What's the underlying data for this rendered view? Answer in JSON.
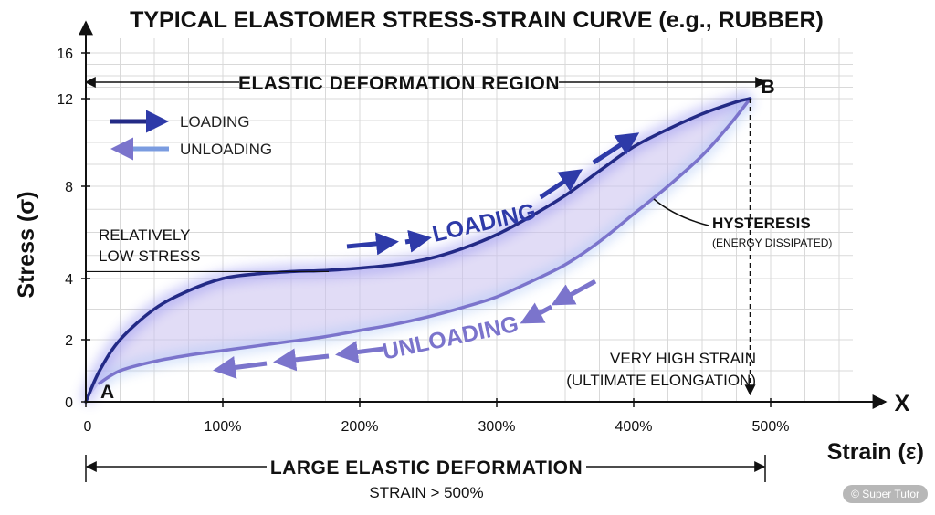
{
  "chart_data": {
    "type": "line",
    "title": "TYPICAL ELASTOMER STRESS-STRAIN CURVE (e.g., RUBBER)",
    "xlabel": "Strain (ε)",
    "ylabel": "Stress (σ)",
    "x_axis_end_label": "X",
    "xlim": [
      0,
      560
    ],
    "ylim": [
      0,
      16
    ],
    "x_ticks": [
      {
        "value": 0,
        "label": "0"
      },
      {
        "value": 100,
        "label": "100%"
      },
      {
        "value": 200,
        "label": "200%"
      },
      {
        "value": 300,
        "label": "300%"
      },
      {
        "value": 400,
        "label": "400%"
      },
      {
        "value": 500,
        "label": "500%"
      }
    ],
    "y_ticks": [
      {
        "value": 0,
        "label": "0"
      },
      {
        "value": 2,
        "label": "2"
      },
      {
        "value": 4,
        "label": "4"
      },
      {
        "value": 8,
        "label": "8"
      },
      {
        "value": 12,
        "label": "12"
      },
      {
        "value": 16,
        "label": "16"
      }
    ],
    "grid": true,
    "legend_position": "top-left",
    "series": [
      {
        "name": "LOADING",
        "color": "#232a86",
        "x": [
          0,
          10,
          25,
          50,
          75,
          100,
          125,
          150,
          175,
          200,
          225,
          250,
          275,
          300,
          325,
          350,
          375,
          400,
          425,
          450,
          475,
          485
        ],
        "y": [
          0,
          1.0,
          2.0,
          3.0,
          3.6,
          4.0,
          4.2,
          4.3,
          4.35,
          4.45,
          4.6,
          4.85,
          5.3,
          5.9,
          6.7,
          7.6,
          8.7,
          9.8,
          10.6,
          11.3,
          11.85,
          12.0
        ]
      },
      {
        "name": "UNLOADING",
        "color": "#7b74cc",
        "x": [
          485,
          470,
          450,
          425,
          400,
          375,
          350,
          325,
          300,
          275,
          250,
          225,
          200,
          175,
          150,
          125,
          100,
          75,
          50,
          25,
          10
        ],
        "y": [
          12.0,
          10.8,
          9.4,
          8.0,
          6.8,
          5.6,
          4.6,
          3.9,
          3.4,
          3.05,
          2.75,
          2.5,
          2.3,
          2.1,
          1.95,
          1.8,
          1.65,
          1.5,
          1.3,
          1.0,
          0.6
        ]
      }
    ],
    "points": [
      {
        "label": "A",
        "x": 0,
        "y": 0
      },
      {
        "label": "B",
        "x": 485,
        "y": 12
      }
    ],
    "annotations": {
      "elastic_region": "ELASTIC DEFORMATION REGION",
      "low_stress_line1": "RELATIVELY",
      "low_stress_line2": "LOW STRESS",
      "low_stress_level": 4.3,
      "curve_loading_label": "LOADING",
      "curve_unloading_label": "UNLOADING",
      "hysteresis": "HYSTERESIS",
      "hysteresis_sub": "(ENERGY DISSIPATED)",
      "high_strain_line1": "VERY HIGH STRAIN",
      "high_strain_line2": "(ULTIMATE ELONGATION)",
      "large_elastic": "LARGE ELASTIC DEFORMATION",
      "strain_note": "STRAIN > 500%"
    }
  },
  "colors": {
    "loading": "#232a86",
    "unloading": "#7b74cc",
    "hysteresis_fill": "#c8c0ee",
    "grid": "#d9d9d9"
  },
  "watermark": "© Super Tutor"
}
